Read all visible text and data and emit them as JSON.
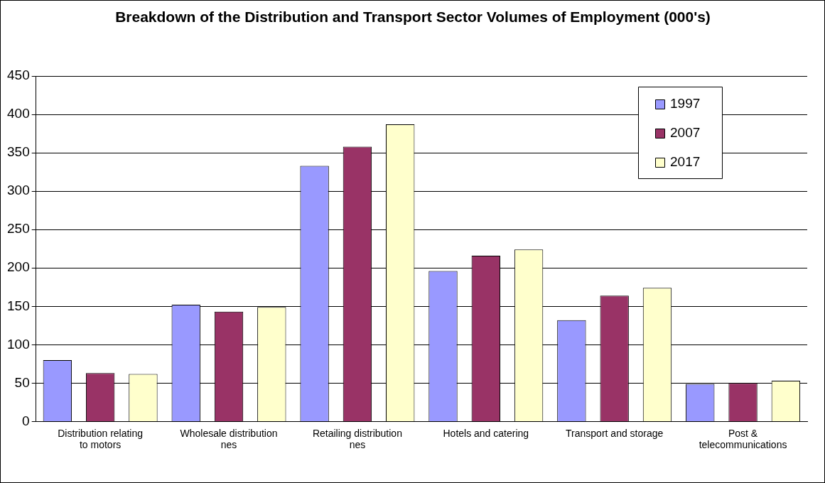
{
  "chart_data": {
    "type": "bar",
    "title": "Breakdown of the Distribution and Transport Sector Volumes of Employment (000's)",
    "categories": [
      "Distribution relating to motors",
      "Wholesale distribution nes",
      "Retailing distribution nes",
      "Hotels and catering",
      "Transport and storage",
      "Post & telecommunications"
    ],
    "series": [
      {
        "name": "1997",
        "color": "#9999ff",
        "values": [
          80,
          152,
          333,
          196,
          132,
          49
        ]
      },
      {
        "name": "2007",
        "color": "#993366",
        "values": [
          63,
          143,
          358,
          216,
          164,
          50
        ]
      },
      {
        "name": "2017",
        "color": "#ffffcc",
        "values": [
          62,
          149,
          387,
          224,
          174,
          53
        ]
      }
    ],
    "ylim": [
      0,
      450
    ],
    "yticks": [
      0,
      50,
      100,
      150,
      200,
      250,
      300,
      350,
      400,
      450
    ],
    "grid": "y",
    "legend": "top right"
  }
}
